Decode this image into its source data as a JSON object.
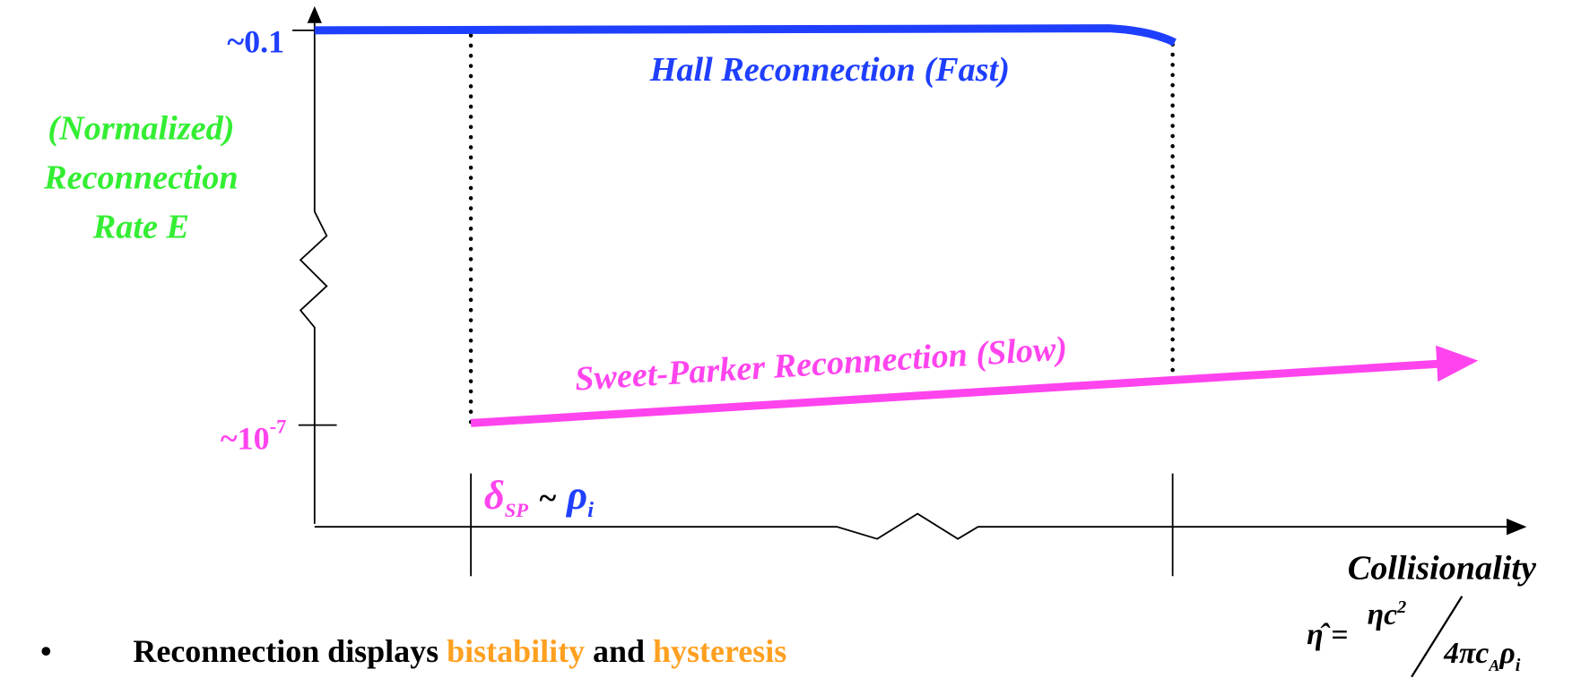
{
  "y_axis": {
    "top_tick": "~0.1",
    "bottom_tick": {
      "base": "~10",
      "exponent": "-7"
    },
    "label": [
      "(Normalized)",
      "Reconnection",
      "Rate E"
    ]
  },
  "curves": {
    "hall": "Hall Reconnection (Fast)",
    "sweet_parker": "Sweet-Parker Reconnection (Slow)"
  },
  "transition": {
    "delta": "δ",
    "delta_sub": "SP",
    "tilde": "~",
    "rho": "ρ",
    "rho_sub": "i"
  },
  "x_axis": {
    "label": "Collisionality",
    "formula": {
      "lhs": "η̂ =",
      "numerator": "ηc",
      "numerator_exp": "2",
      "denominator": "4πc",
      "den_sub_a": "A",
      "den_rho": "ρ",
      "den_sub_i": "i"
    }
  },
  "bullet": {
    "marker": "•",
    "text_1": "Reconnection displays ",
    "term_1": "bistability",
    "text_2": " and ",
    "term_2": "hysteresis"
  }
}
